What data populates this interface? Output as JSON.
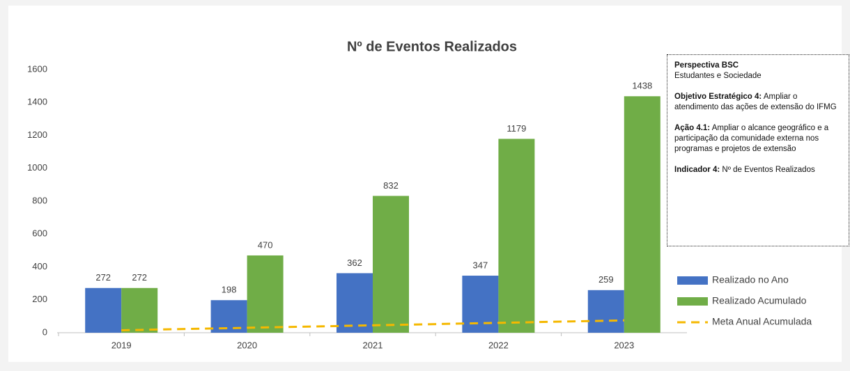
{
  "chart_data": {
    "type": "bar",
    "title": "Nº de Eventos Realizados",
    "categories": [
      "2019",
      "2020",
      "2021",
      "2022",
      "2023"
    ],
    "series": [
      {
        "name": "Realizado no Ano",
        "color": "#4472c4",
        "values": [
          272,
          198,
          362,
          347,
          259
        ]
      },
      {
        "name": "Realizado Acumulado",
        "color": "#70ad47",
        "values": [
          272,
          470,
          832,
          1179,
          1438
        ]
      },
      {
        "name": "Meta Anual Acumulada",
        "color": "#f5b800",
        "type": "line",
        "dashed": true,
        "values": [
          15,
          30,
          45,
          60,
          75
        ]
      }
    ],
    "ylim": [
      0,
      1600
    ],
    "yticks": [
      0,
      200,
      400,
      600,
      800,
      1000,
      1200,
      1400,
      1600
    ],
    "grid": false,
    "legend": "right",
    "annotations": [
      {
        "heading": "Perspectiva BSC",
        "text": "Estudantes e Sociedade"
      },
      {
        "heading": "Objetivo Estratégico 4:",
        "text": "Ampliar o atendimento das ações de extensão do IFMG"
      },
      {
        "heading": "Ação 4.1:",
        "text": "Ampliar o alcance geográfico e a participação da comunidade externa nos programas e projetos de extensão"
      },
      {
        "heading": "Indicador 4:",
        "text": "Nº de Eventos Realizados"
      }
    ]
  }
}
